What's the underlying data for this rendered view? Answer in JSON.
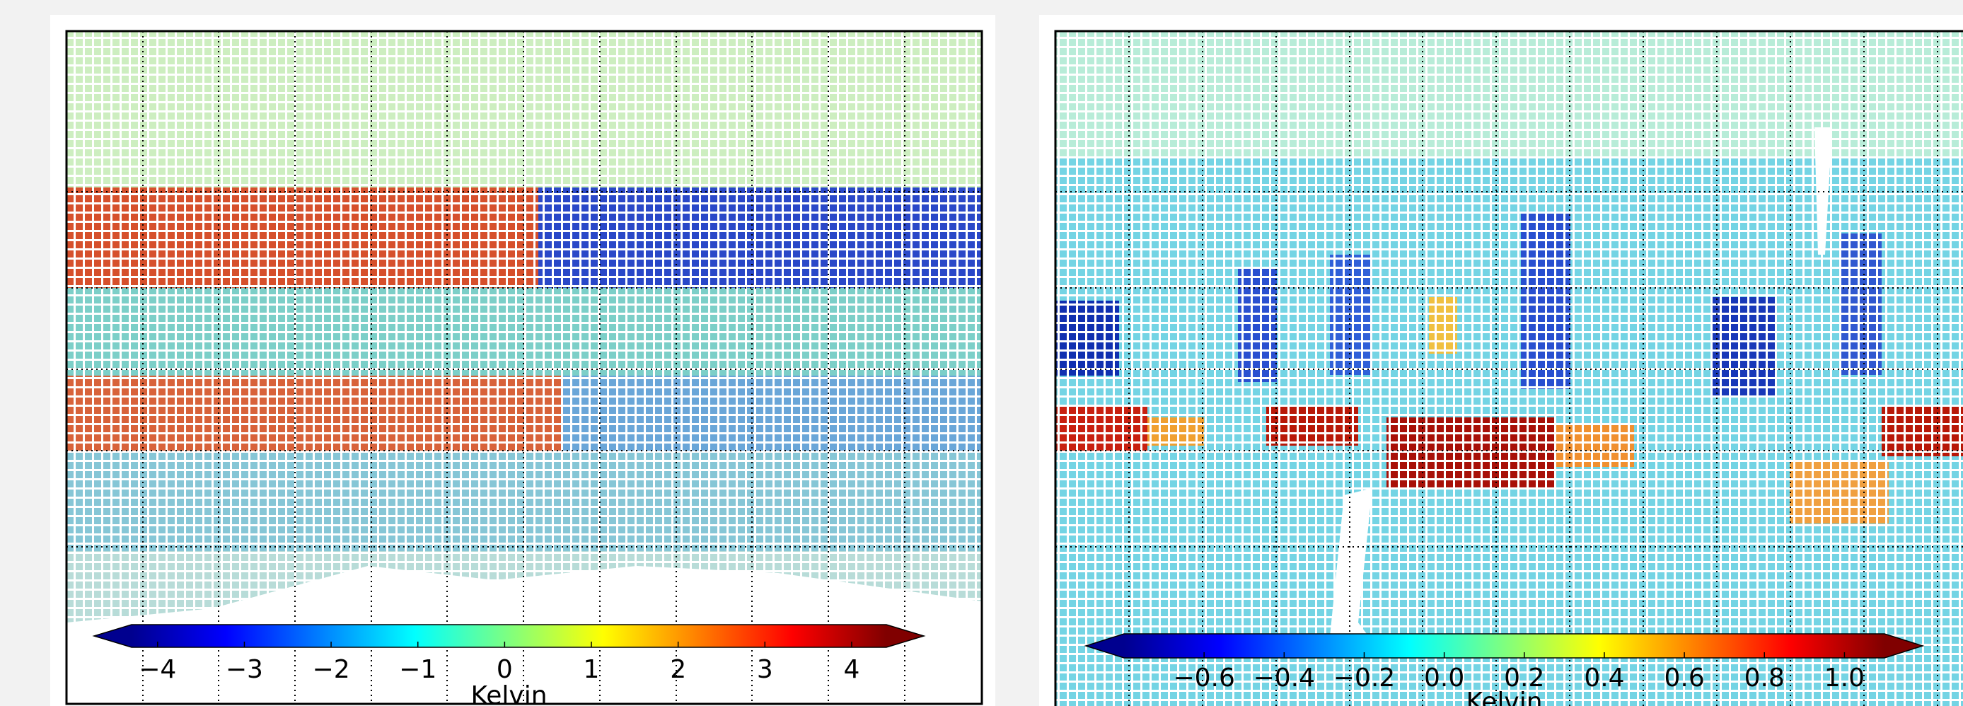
{
  "chart_data": [
    {
      "type": "map",
      "colormap": "jet",
      "colorbar": {
        "label": "Kelvin",
        "lim": [
          -4.3,
          4.4
        ],
        "ticks": [
          {
            "value": -4,
            "label": "−4"
          },
          {
            "value": -3,
            "label": "−3"
          },
          {
            "value": -2,
            "label": "−2"
          },
          {
            "value": -1,
            "label": "−1"
          },
          0,
          1,
          2,
          3,
          4
        ]
      }
    },
    {
      "type": "map",
      "colormap": "jet",
      "colorbar": {
        "label": "Kelvin",
        "lim": [
          -0.8,
          1.1
        ],
        "ticks": [
          {
            "value": -0.6,
            "label": "−0.6"
          },
          {
            "value": -0.4,
            "label": "−0.4"
          },
          {
            "value": -0.2,
            "label": "−0.2"
          },
          {
            "value": 0,
            "label": "0.0"
          },
          0.2,
          0.4,
          0.6,
          0.8,
          {
            "value": 1,
            "label": "1.0"
          }
        ]
      }
    }
  ]
}
